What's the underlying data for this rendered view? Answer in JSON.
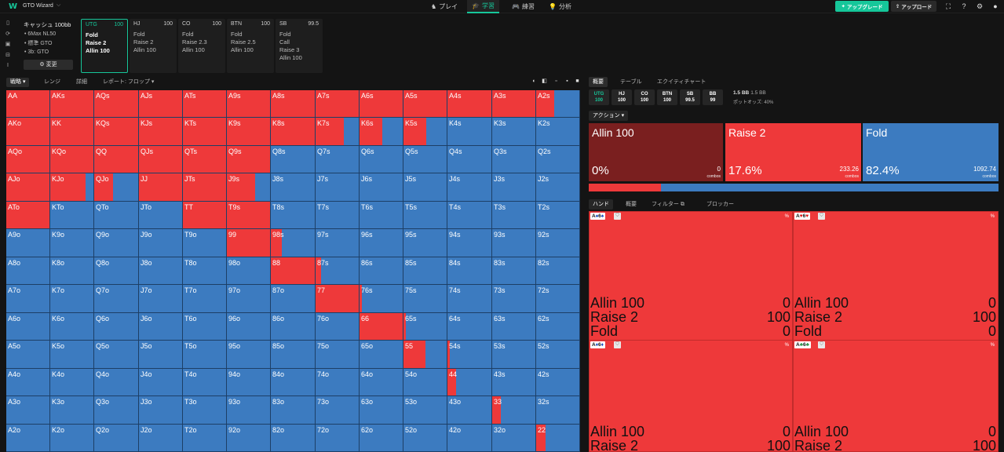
{
  "app": {
    "logo": "W",
    "name": "GTO Wizard",
    "name_chevron": "⌵"
  },
  "nav": [
    {
      "label": "プレイ",
      "icon": "♞",
      "active": false
    },
    {
      "label": "学習",
      "icon": "🎓",
      "active": true
    },
    {
      "label": "練習",
      "icon": "🎮",
      "active": false
    },
    {
      "label": "分析",
      "icon": "💡",
      "active": false
    }
  ],
  "toolbar": {
    "upgrade_label": "アップグレード",
    "upgrade_icon": "✦",
    "upload_label": "アップロード",
    "upload_icon": "⇪",
    "upgrade_color": "#16c79a"
  },
  "config": {
    "title": "キャッシュ 100bb",
    "lines": [
      "6Max NL50",
      "標準 GTO",
      "3b: GTO"
    ],
    "change_label": "変更",
    "change_icon": "⚙"
  },
  "positions": [
    {
      "name": "UTG",
      "stack": "100",
      "actions": [
        "Fold",
        "Raise 2",
        "Allin 100"
      ],
      "active": true
    },
    {
      "name": "HJ",
      "stack": "100",
      "actions": [
        "Fold",
        "Raise 2",
        "Allin 100"
      ],
      "active": false
    },
    {
      "name": "CO",
      "stack": "100",
      "actions": [
        "Fold",
        "Raise 2.3",
        "Allin 100"
      ],
      "active": false
    },
    {
      "name": "BTN",
      "stack": "100",
      "actions": [
        "Fold",
        "Raise 2.5",
        "Allin 100"
      ],
      "active": false
    },
    {
      "name": "SB",
      "stack": "99.5",
      "actions": [
        "Fold",
        "Call",
        "Raise 3",
        "Allin 100"
      ],
      "active": false
    }
  ],
  "left_tabs": {
    "strategy": "戦略",
    "range": "レンジ",
    "detail": "詳細",
    "report": "レポート: フロップ"
  },
  "grid": {
    "colors": {
      "fold": "#3c7bc0",
      "raise": "#ee393a"
    },
    "rows": [
      {
        "labels": [
          "AA",
          "AKs",
          "AQs",
          "AJs",
          "ATs",
          "A9s",
          "A8s",
          "A7s",
          "A6s",
          "A5s",
          "A4s",
          "A3s",
          "A2s"
        ],
        "raise": [
          1,
          1,
          1,
          1,
          1,
          1,
          1,
          1,
          1,
          1,
          1,
          1,
          0.42
        ]
      },
      {
        "labels": [
          "AKo",
          "KK",
          "KQs",
          "KJs",
          "KTs",
          "K9s",
          "K8s",
          "K7s",
          "K6s",
          "K5s",
          "K4s",
          "K3s",
          "K2s"
        ],
        "raise": [
          1,
          1,
          1,
          1,
          1,
          1,
          1,
          0.65,
          0.52,
          0.52,
          0,
          0,
          0
        ]
      },
      {
        "labels": [
          "AQo",
          "KQo",
          "QQ",
          "QJs",
          "QTs",
          "Q9s",
          "Q8s",
          "Q7s",
          "Q6s",
          "Q5s",
          "Q4s",
          "Q3s",
          "Q2s"
        ],
        "raise": [
          1,
          1,
          1,
          1,
          1,
          1,
          0,
          0,
          0,
          0,
          0,
          0,
          0
        ]
      },
      {
        "labels": [
          "AJo",
          "KJo",
          "QJo",
          "JJ",
          "JTs",
          "J9s",
          "J8s",
          "J7s",
          "J6s",
          "J5s",
          "J4s",
          "J3s",
          "J2s"
        ],
        "raise": [
          1,
          0.82,
          0.42,
          1,
          1,
          0.65,
          0,
          0,
          0,
          0,
          0,
          0,
          0
        ]
      },
      {
        "labels": [
          "ATo",
          "KTo",
          "QTo",
          "JTo",
          "TT",
          "T9s",
          "T8s",
          "T7s",
          "T6s",
          "T5s",
          "T4s",
          "T3s",
          "T2s"
        ],
        "raise": [
          1,
          0,
          0,
          0,
          1,
          1,
          0,
          0,
          0,
          0,
          0,
          0,
          0
        ]
      },
      {
        "labels": [
          "A9o",
          "K9o",
          "Q9o",
          "J9o",
          "T9o",
          "99",
          "98s",
          "97s",
          "96s",
          "95s",
          "94s",
          "93s",
          "92s"
        ],
        "raise": [
          0,
          0,
          0,
          0,
          0,
          1,
          0.25,
          0,
          0,
          0,
          0,
          0,
          0
        ]
      },
      {
        "labels": [
          "A8o",
          "K8o",
          "Q8o",
          "J8o",
          "T8o",
          "98o",
          "88",
          "87s",
          "86s",
          "85s",
          "84s",
          "83s",
          "82s"
        ],
        "raise": [
          0,
          0,
          0,
          0,
          0,
          0,
          1,
          0.12,
          0,
          0,
          0,
          0,
          0
        ]
      },
      {
        "labels": [
          "A7o",
          "K7o",
          "Q7o",
          "J7o",
          "T7o",
          "97o",
          "87o",
          "77",
          "76s",
          "75s",
          "74s",
          "73s",
          "72s"
        ],
        "raise": [
          0,
          0,
          0,
          0,
          0,
          0,
          0,
          1,
          0.06,
          0,
          0,
          0,
          0
        ]
      },
      {
        "labels": [
          "A6o",
          "K6o",
          "Q6o",
          "J6o",
          "T6o",
          "96o",
          "86o",
          "76o",
          "66",
          "65s",
          "64s",
          "63s",
          "62s"
        ],
        "raise": [
          0,
          0,
          0,
          0,
          0,
          0,
          0,
          0,
          1,
          0.05,
          0,
          0,
          0
        ]
      },
      {
        "labels": [
          "A5o",
          "K5o",
          "Q5o",
          "J5o",
          "T5o",
          "95o",
          "85o",
          "75o",
          "65o",
          "55",
          "54s",
          "53s",
          "52s"
        ],
        "raise": [
          0,
          0,
          0,
          0,
          0,
          0,
          0,
          0,
          0,
          0.5,
          0.05,
          0,
          0
        ]
      },
      {
        "labels": [
          "A4o",
          "K4o",
          "Q4o",
          "J4o",
          "T4o",
          "94o",
          "84o",
          "74o",
          "64o",
          "54o",
          "44",
          "43s",
          "42s"
        ],
        "raise": [
          0,
          0,
          0,
          0,
          0,
          0,
          0,
          0,
          0,
          0,
          0.2,
          0,
          0
        ]
      },
      {
        "labels": [
          "A3o",
          "K3o",
          "Q3o",
          "J3o",
          "T3o",
          "93o",
          "83o",
          "73o",
          "63o",
          "53o",
          "43o",
          "33",
          "32s"
        ],
        "raise": [
          0,
          0,
          0,
          0,
          0,
          0,
          0,
          0,
          0,
          0,
          0,
          0.2,
          0
        ]
      },
      {
        "labels": [
          "A2o",
          "K2o",
          "Q2o",
          "J2o",
          "T2o",
          "92o",
          "82o",
          "72o",
          "62o",
          "52o",
          "42o",
          "32o",
          "22"
        ],
        "raise": [
          0,
          0,
          0,
          0,
          0,
          0,
          0,
          0,
          0,
          0,
          0,
          0,
          0.22
        ]
      }
    ]
  },
  "right_tabs": {
    "overview": "概要",
    "table": "テーブル",
    "equity": "エクイティチャート"
  },
  "stacks": [
    {
      "pos": "UTG",
      "val": "100",
      "active": true
    },
    {
      "pos": "HJ",
      "val": "100",
      "active": false
    },
    {
      "pos": "CO",
      "val": "100",
      "active": false
    },
    {
      "pos": "BTN",
      "val": "100",
      "active": false
    },
    {
      "pos": "SB",
      "val": "99.5",
      "active": false
    },
    {
      "pos": "BB",
      "val": "99",
      "active": false
    }
  ],
  "pot": {
    "pot": "1.5 BB",
    "pot2": "1.5 BB",
    "odds": "ポットオッズ: 40%"
  },
  "action_dropdown": "アクション",
  "actions": [
    {
      "name": "Allin 100",
      "pct": "0%",
      "combos": "0",
      "combos_label": "combos",
      "color": "#7a1f1f",
      "freq": 0
    },
    {
      "name": "Raise 2",
      "pct": "17.6%",
      "combos": "233.26",
      "combos_label": "combos",
      "color": "#ee393a",
      "freq": 0.176
    },
    {
      "name": "Fold",
      "pct": "82.4%",
      "combos": "1092.74",
      "combos_label": "combos",
      "color": "#3c7bc0",
      "freq": 0.824
    }
  ],
  "hand_tabs": {
    "hand": "ハンド",
    "overview": "概要",
    "filter": "フィルター",
    "filter_icon": "⧉",
    "blocker": "ブロッカー"
  },
  "hands": [
    {
      "rank1": "A",
      "suit1": "♠",
      "rank2": "6",
      "suit2": "♠",
      "suit_class": "b",
      "pct_label": "%",
      "rows": [
        {
          "name": "Allin 100",
          "val": "0"
        },
        {
          "name": "Raise 2",
          "val": "100"
        },
        {
          "name": "Fold",
          "val": "0"
        }
      ]
    },
    {
      "rank1": "A",
      "suit1": "♥",
      "rank2": "6",
      "suit2": "♥",
      "suit_class": "r",
      "pct_label": "%",
      "rows": [
        {
          "name": "Allin 100",
          "val": "0"
        },
        {
          "name": "Raise 2",
          "val": "100"
        },
        {
          "name": "Fold",
          "val": "0"
        }
      ]
    },
    {
      "rank1": "A",
      "suit1": "♦",
      "rank2": "6",
      "suit2": "♦",
      "suit_class": "b",
      "pct_label": "%",
      "rows": [
        {
          "name": "Allin 100",
          "val": "0"
        },
        {
          "name": "Raise 2",
          "val": "100"
        }
      ]
    },
    {
      "rank1": "A",
      "suit1": "♣",
      "rank2": "6",
      "suit2": "♣",
      "suit_class": "g",
      "pct_label": "%",
      "rows": [
        {
          "name": "Allin 100",
          "val": "0"
        },
        {
          "name": "Raise 2",
          "val": "100"
        }
      ]
    }
  ]
}
